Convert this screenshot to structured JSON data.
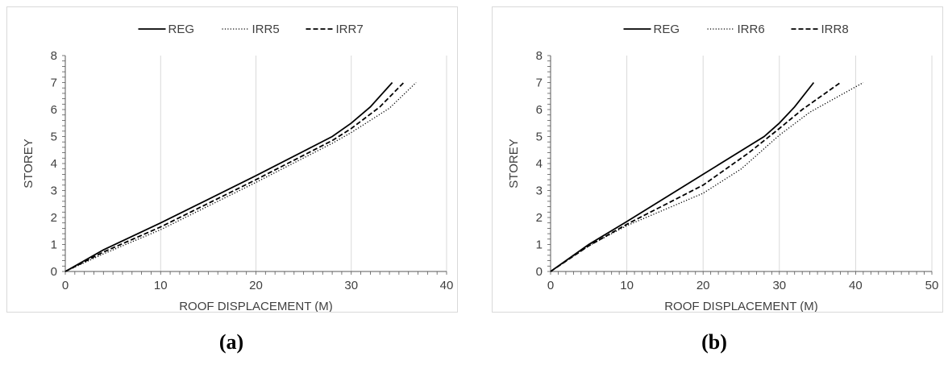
{
  "chart_data": [
    {
      "type": "line",
      "caption": "(a)",
      "xlabel": "ROOF DISPLACEMENT (M)",
      "ylabel": "STOREY",
      "xlim": [
        0,
        40
      ],
      "ylim": [
        0,
        8
      ],
      "xticks": [
        0,
        10,
        20,
        30,
        40
      ],
      "yticks": [
        0,
        1,
        2,
        3,
        4,
        5,
        6,
        7,
        8
      ],
      "grid": "vertical",
      "legend_position": "top",
      "series": [
        {
          "name": "REG",
          "style": "solid",
          "points": [
            [
              0,
              0
            ],
            [
              4,
              0.8
            ],
            [
              10,
              1.8
            ],
            [
              20,
              3.55
            ],
            [
              28,
              5.0
            ],
            [
              30,
              5.5
            ],
            [
              32,
              6.1
            ],
            [
              34.3,
              7
            ]
          ]
        },
        {
          "name": "IRR5",
          "style": "dotted",
          "points": [
            [
              0,
              0
            ],
            [
              4,
              0.65
            ],
            [
              10,
              1.55
            ],
            [
              20,
              3.3
            ],
            [
              28,
              4.75
            ],
            [
              30,
              5.15
            ],
            [
              34,
              6.05
            ],
            [
              36.8,
              7
            ]
          ]
        },
        {
          "name": "IRR7",
          "style": "dashed",
          "points": [
            [
              0,
              0
            ],
            [
              4,
              0.72
            ],
            [
              10,
              1.65
            ],
            [
              20,
              3.4
            ],
            [
              28,
              4.85
            ],
            [
              30,
              5.3
            ],
            [
              33,
              6.1
            ],
            [
              35.5,
              7
            ]
          ]
        }
      ]
    },
    {
      "type": "line",
      "caption": "(b)",
      "xlabel": "ROOF DISPLACEMENT (M)",
      "ylabel": "STOREY",
      "xlim": [
        0,
        50
      ],
      "ylim": [
        0,
        8
      ],
      "xticks": [
        0,
        10,
        20,
        30,
        40,
        50
      ],
      "yticks": [
        0,
        1,
        2,
        3,
        4,
        5,
        6,
        7,
        8
      ],
      "grid": "vertical",
      "legend_position": "top",
      "series": [
        {
          "name": "REG",
          "style": "solid",
          "points": [
            [
              0,
              0
            ],
            [
              5,
              1.0
            ],
            [
              10,
              1.85
            ],
            [
              20,
              3.6
            ],
            [
              28,
              5.0
            ],
            [
              30,
              5.5
            ],
            [
              32,
              6.1
            ],
            [
              34.5,
              7
            ]
          ]
        },
        {
          "name": "IRR6",
          "style": "dotted",
          "points": [
            [
              0,
              0
            ],
            [
              5,
              0.95
            ],
            [
              10,
              1.7
            ],
            [
              20,
              2.9
            ],
            [
              25,
              3.8
            ],
            [
              30,
              5.05
            ],
            [
              34,
              5.9
            ],
            [
              41,
              7
            ]
          ]
        },
        {
          "name": "IRR8",
          "style": "dashed",
          "points": [
            [
              0,
              0
            ],
            [
              5,
              0.95
            ],
            [
              10,
              1.75
            ],
            [
              20,
              3.2
            ],
            [
              26,
              4.4
            ],
            [
              30,
              5.3
            ],
            [
              33,
              6.0
            ],
            [
              38,
              7
            ]
          ]
        }
      ]
    }
  ]
}
